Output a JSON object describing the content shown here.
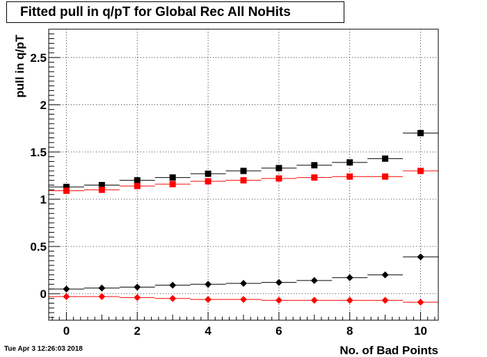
{
  "chart_data": {
    "type": "scatter",
    "title": "Fitted pull in q/pT for Global Rec All NoHits",
    "xlabel": "No. of Bad Points",
    "ylabel": "pull in q/pT",
    "xlim": [
      -0.5,
      10.5
    ],
    "ylim": [
      -0.28,
      2.8
    ],
    "x_ticks": [
      0,
      2,
      4,
      6,
      8,
      10
    ],
    "y_ticks": [
      0,
      0.5,
      1,
      1.5,
      2,
      2.5
    ],
    "x_tick_labels": [
      "0",
      "2",
      "4",
      "6",
      "8",
      "10"
    ],
    "y_tick_labels": [
      "0",
      "0.5",
      "1",
      "1.5",
      "2",
      "2.5"
    ],
    "grid": true,
    "x": [
      0,
      1,
      2,
      3,
      4,
      5,
      6,
      7,
      8,
      9,
      10
    ],
    "series": [
      {
        "marker": "square",
        "color": "#000000",
        "values": [
          1.13,
          1.15,
          1.2,
          1.23,
          1.27,
          1.3,
          1.33,
          1.36,
          1.39,
          1.43,
          1.7
        ]
      },
      {
        "marker": "square",
        "color": "#ff0000",
        "values": [
          1.09,
          1.1,
          1.14,
          1.16,
          1.19,
          1.2,
          1.22,
          1.23,
          1.24,
          1.24,
          1.3
        ]
      },
      {
        "marker": "diamond",
        "color": "#000000",
        "values": [
          0.05,
          0.06,
          0.07,
          0.09,
          0.1,
          0.11,
          0.12,
          0.14,
          0.17,
          0.2,
          0.39
        ]
      },
      {
        "marker": "diamond",
        "color": "#ff0000",
        "values": [
          -0.03,
          -0.03,
          -0.04,
          -0.05,
          -0.06,
          -0.06,
          -0.07,
          -0.07,
          -0.07,
          -0.07,
          -0.09
        ]
      }
    ]
  },
  "footer": {
    "timestamp": "Tue Apr  3 12:26:03 2018"
  }
}
